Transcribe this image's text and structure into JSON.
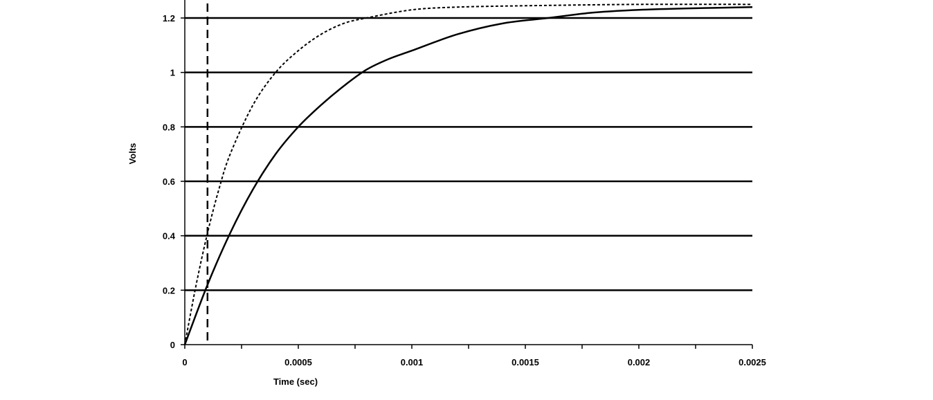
{
  "chart_data": {
    "type": "line",
    "title": "",
    "xlabel": "Time (sec)",
    "ylabel": "Volts",
    "xlim": [
      0,
      0.0025
    ],
    "ylim": [
      0,
      1.2
    ],
    "x_ticks": [
      "0",
      "0.0005",
      "0.001",
      "0.0015",
      "0.002",
      "0.0025"
    ],
    "y_ticks": [
      "0",
      "0.2",
      "0.4",
      "0.6",
      "0.8",
      "1",
      "1.2"
    ],
    "grid": "horizontal",
    "legend": "none",
    "series": [
      {
        "style": "solid",
        "x": [
          0,
          0.0001,
          0.0002,
          0.0003,
          0.0004,
          0.0005,
          0.0006,
          0.0007,
          0.0008,
          0.0009,
          0.001,
          0.0012,
          0.0014,
          0.0016,
          0.0018,
          0.002,
          0.0022,
          0.0025
        ],
        "y": [
          0,
          0.22,
          0.41,
          0.57,
          0.7,
          0.8,
          0.88,
          0.95,
          1.01,
          1.05,
          1.08,
          1.14,
          1.18,
          1.2,
          1.22,
          1.23,
          1.235,
          1.24
        ]
      },
      {
        "style": "dotted",
        "x": [
          0,
          5e-05,
          0.0001,
          0.00015,
          0.0002,
          0.0003,
          0.0004,
          0.0005,
          0.0006,
          0.0007,
          0.0008,
          0.001,
          0.0012,
          0.0015,
          0.002,
          0.0025
        ],
        "y": [
          0,
          0.22,
          0.41,
          0.57,
          0.7,
          0.88,
          1.0,
          1.08,
          1.14,
          1.18,
          1.2,
          1.23,
          1.24,
          1.245,
          1.25,
          1.25
        ]
      }
    ],
    "vertical_line": {
      "x": 0.0001,
      "style": "dashed"
    }
  }
}
